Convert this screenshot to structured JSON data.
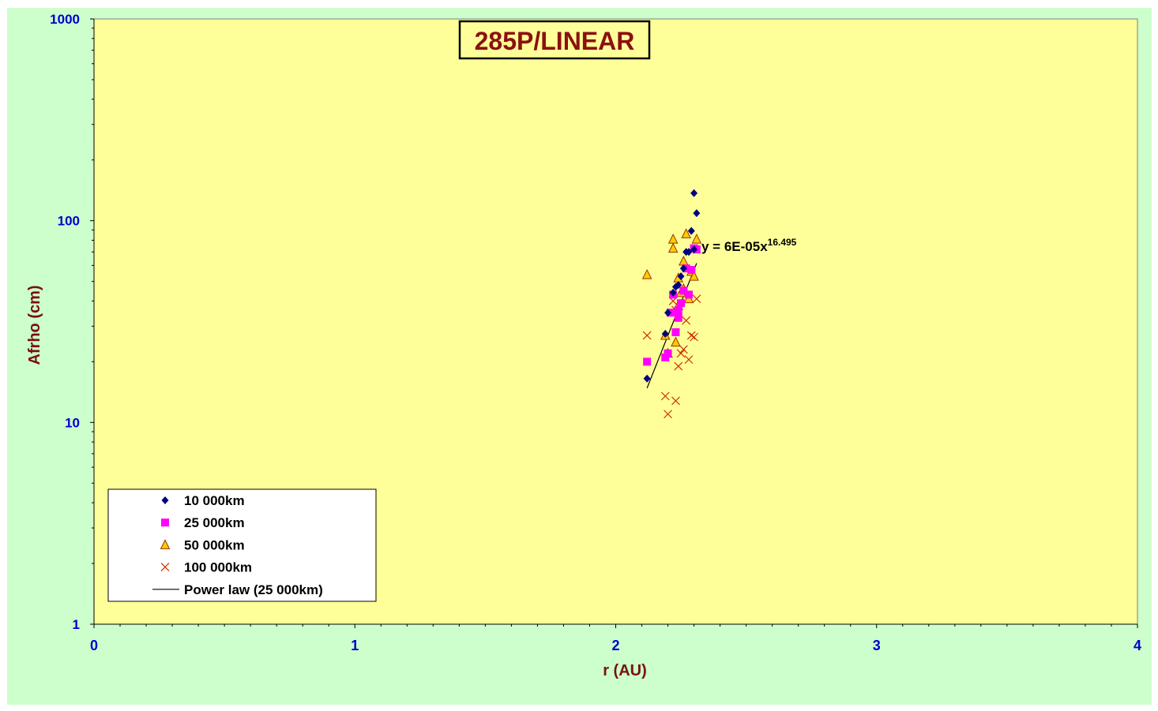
{
  "chart_data": {
    "type": "scatter",
    "title": "285P/LINEAR",
    "xlabel": "r (AU)",
    "ylabel": "Afrho (cm)",
    "xlim": [
      0,
      4
    ],
    "ylim": [
      1,
      1000
    ],
    "yscale": "log",
    "x_ticks": [
      "0",
      "1",
      "2",
      "3",
      "4"
    ],
    "y_ticks": [
      "1",
      "10",
      "100",
      "1000"
    ],
    "grid": false,
    "legend_position": "bottom-left",
    "colors": {
      "outer_background": "#ccffcc",
      "plot_background": "#ffff99",
      "series_10000": "#000080",
      "series_25000": "#ff00ff",
      "series_50000_fill": "#ffcc00",
      "series_50000_edge": "#993300",
      "series_100000": "#cc3300",
      "fit_line": "#000000"
    },
    "series": [
      {
        "name": "10 000km",
        "marker": "diamond",
        "points": [
          [
            2.12,
            16.5
          ],
          [
            2.19,
            27.5
          ],
          [
            2.2,
            35
          ],
          [
            2.22,
            44
          ],
          [
            2.23,
            47
          ],
          [
            2.24,
            48
          ],
          [
            2.25,
            53
          ],
          [
            2.26,
            58
          ],
          [
            2.27,
            70
          ],
          [
            2.28,
            70
          ],
          [
            2.29,
            89
          ],
          [
            2.3,
            137
          ],
          [
            2.31,
            109
          ],
          [
            2.3,
            72
          ]
        ]
      },
      {
        "name": "25 000km",
        "marker": "square",
        "points": [
          [
            2.12,
            20
          ],
          [
            2.19,
            21
          ],
          [
            2.2,
            22
          ],
          [
            2.21,
            35
          ],
          [
            2.22,
            43
          ],
          [
            2.23,
            28
          ],
          [
            2.24,
            36
          ],
          [
            2.24,
            33
          ],
          [
            2.25,
            39
          ],
          [
            2.26,
            45
          ],
          [
            2.27,
            58
          ],
          [
            2.28,
            43
          ],
          [
            2.29,
            57
          ],
          [
            2.3,
            73
          ],
          [
            2.31,
            72
          ]
        ]
      },
      {
        "name": "50 000km",
        "marker": "triangle",
        "points": [
          [
            2.12,
            54
          ],
          [
            2.19,
            27
          ],
          [
            2.2,
            22
          ],
          [
            2.22,
            81
          ],
          [
            2.22,
            73
          ],
          [
            2.23,
            25
          ],
          [
            2.24,
            38
          ],
          [
            2.24,
            52
          ],
          [
            2.25,
            44
          ],
          [
            2.26,
            63
          ],
          [
            2.26,
            46
          ],
          [
            2.27,
            86
          ],
          [
            2.28,
            41
          ],
          [
            2.29,
            56
          ],
          [
            2.3,
            53
          ],
          [
            2.31,
            81
          ]
        ]
      },
      {
        "name": "100 000km",
        "marker": "x",
        "points": [
          [
            2.12,
            27
          ],
          [
            2.19,
            13.5
          ],
          [
            2.2,
            11
          ],
          [
            2.23,
            12.8
          ],
          [
            2.24,
            19
          ],
          [
            2.25,
            22
          ],
          [
            2.26,
            23
          ],
          [
            2.27,
            32
          ],
          [
            2.28,
            20.5
          ],
          [
            2.29,
            27
          ],
          [
            2.3,
            26.5
          ],
          [
            2.31,
            41
          ],
          [
            2.22,
            40
          ],
          [
            2.23,
            36
          ]
        ]
      },
      {
        "name": "Power law (25 000km)",
        "marker": "line",
        "points": [
          [
            2.12,
            14.8
          ],
          [
            2.31,
            61.5
          ]
        ]
      }
    ],
    "fit_equation": {
      "prefix": "y = 6E-05x",
      "exponent": "16.495"
    }
  }
}
